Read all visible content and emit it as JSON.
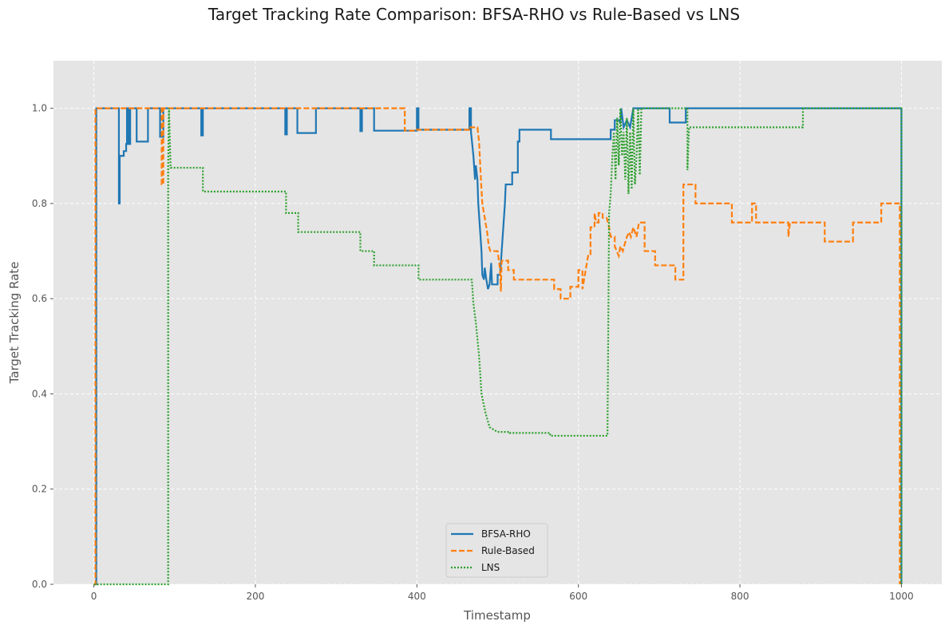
{
  "chart_data": {
    "type": "line",
    "title": "Target Tracking Rate Comparison: BFSA-RHO vs Rule-Based vs LNS",
    "xlabel": "Timestamp",
    "ylabel": "Target Tracking Rate",
    "xlim": [
      -50,
      1050
    ],
    "ylim": [
      0,
      1.1
    ],
    "xticks": [
      0,
      200,
      400,
      600,
      800,
      1000
    ],
    "yticks": [
      0.0,
      0.2,
      0.4,
      0.6,
      0.8,
      1.0
    ],
    "xtick_labels": [
      "0",
      "200",
      "400",
      "600",
      "800",
      "1000"
    ],
    "ytick_labels": [
      "0.0",
      "0.2",
      "0.4",
      "0.6",
      "0.8",
      "1.0"
    ],
    "grid": true,
    "legend_position": "lower-center",
    "series": [
      {
        "name": "BFSA-RHO",
        "color": "#1f77b4",
        "style": "solid",
        "points": [
          [
            0,
            0
          ],
          [
            3,
            0
          ],
          [
            3,
            1.0
          ],
          [
            31,
            1.0
          ],
          [
            31,
            0.8
          ],
          [
            32,
            0.8
          ],
          [
            32,
            0.9
          ],
          [
            37,
            0.9
          ],
          [
            37,
            0.91
          ],
          [
            40,
            0.91
          ],
          [
            40,
            0.925
          ],
          [
            41,
            0.925
          ],
          [
            41,
            1.0
          ],
          [
            43,
            1.0
          ],
          [
            43,
            0.925
          ],
          [
            45,
            0.925
          ],
          [
            45,
            1.0
          ],
          [
            53,
            1.0
          ],
          [
            53,
            0.93
          ],
          [
            67,
            0.93
          ],
          [
            67,
            1.0
          ],
          [
            82,
            1.0
          ],
          [
            82,
            0.94
          ],
          [
            86,
            0.94
          ],
          [
            86,
            1.0
          ],
          [
            133,
            1.0
          ],
          [
            133,
            0.943
          ],
          [
            135,
            0.943
          ],
          [
            135,
            1.0
          ],
          [
            237,
            1.0
          ],
          [
            237,
            0.945
          ],
          [
            239,
            0.945
          ],
          [
            239,
            1.0
          ],
          [
            252,
            1.0
          ],
          [
            252,
            0.948
          ],
          [
            275,
            0.948
          ],
          [
            275,
            1.0
          ],
          [
            330,
            1.0
          ],
          [
            330,
            0.952
          ],
          [
            332,
            0.952
          ],
          [
            332,
            1.0
          ],
          [
            347,
            1.0
          ],
          [
            347,
            0.953
          ],
          [
            400,
            0.953
          ],
          [
            400,
            1.0
          ],
          [
            402,
            1.0
          ],
          [
            402,
            0.955
          ],
          [
            465,
            0.955
          ],
          [
            465,
            1.0
          ],
          [
            467,
            1.0
          ],
          [
            467,
            0.95
          ],
          [
            470,
            0.9
          ],
          [
            472,
            0.85
          ],
          [
            473,
            0.88
          ],
          [
            475,
            0.85
          ],
          [
            476,
            0.8
          ],
          [
            478,
            0.75
          ],
          [
            480,
            0.7
          ],
          [
            481,
            0.65
          ],
          [
            483,
            0.64
          ],
          [
            484,
            0.665
          ],
          [
            486,
            0.64
          ],
          [
            488,
            0.62
          ],
          [
            490,
            0.63
          ],
          [
            492,
            0.675
          ],
          [
            493,
            0.63
          ],
          [
            500,
            0.63
          ],
          [
            500,
            0.65
          ],
          [
            503,
            0.65
          ],
          [
            505,
            0.7
          ],
          [
            507,
            0.75
          ],
          [
            509,
            0.8
          ],
          [
            510,
            0.84
          ],
          [
            518,
            0.84
          ],
          [
            518,
            0.865
          ],
          [
            525,
            0.865
          ],
          [
            525,
            0.93
          ],
          [
            527,
            0.93
          ],
          [
            527,
            0.955
          ],
          [
            566,
            0.955
          ],
          [
            566,
            0.935
          ],
          [
            640,
            0.935
          ],
          [
            640,
            0.955
          ],
          [
            645,
            0.955
          ],
          [
            645,
            0.975
          ],
          [
            650,
            0.975
          ],
          [
            652,
            0.97
          ],
          [
            653,
            1.0
          ],
          [
            656,
            0.96
          ],
          [
            660,
            0.975
          ],
          [
            664,
            0.96
          ],
          [
            666,
            0.98
          ],
          [
            668,
            1.0
          ],
          [
            713,
            1.0
          ],
          [
            713,
            0.97
          ],
          [
            733,
            0.97
          ],
          [
            733,
            1.0
          ],
          [
            1000,
            1.0
          ],
          [
            1000,
            0.0
          ]
        ]
      },
      {
        "name": "Rule-Based",
        "color": "#ff7f0e",
        "style": "dashed",
        "points": [
          [
            0,
            0
          ],
          [
            2,
            0
          ],
          [
            2,
            1.0
          ],
          [
            84,
            1.0
          ],
          [
            84,
            0.84
          ],
          [
            86,
            0.84
          ],
          [
            86,
            1.0
          ],
          [
            385,
            1.0
          ],
          [
            385,
            0.953
          ],
          [
            398,
            0.953
          ],
          [
            398,
            0.955
          ],
          [
            465,
            0.955
          ],
          [
            465,
            0.96
          ],
          [
            475,
            0.96
          ],
          [
            477,
            0.93
          ],
          [
            479,
            0.86
          ],
          [
            481,
            0.8
          ],
          [
            483,
            0.78
          ],
          [
            485,
            0.76
          ],
          [
            487,
            0.74
          ],
          [
            489,
            0.71
          ],
          [
            491,
            0.7
          ],
          [
            500,
            0.7
          ],
          [
            503,
            0.66
          ],
          [
            504,
            0.615
          ],
          [
            505,
            0.68
          ],
          [
            513,
            0.68
          ],
          [
            513,
            0.66
          ],
          [
            520,
            0.66
          ],
          [
            520,
            0.64
          ],
          [
            560,
            0.64
          ],
          [
            560,
            0.64
          ],
          [
            570,
            0.64
          ],
          [
            570,
            0.62
          ],
          [
            578,
            0.62
          ],
          [
            578,
            0.6
          ],
          [
            590,
            0.6
          ],
          [
            590,
            0.625
          ],
          [
            600,
            0.625
          ],
          [
            600,
            0.66
          ],
          [
            605,
            0.66
          ],
          [
            605,
            0.62
          ],
          [
            610,
            0.67
          ],
          [
            612,
            0.69
          ],
          [
            615,
            0.69
          ],
          [
            615,
            0.75
          ],
          [
            620,
            0.75
          ],
          [
            620,
            0.78
          ],
          [
            622,
            0.76
          ],
          [
            625,
            0.76
          ],
          [
            625,
            0.78
          ],
          [
            630,
            0.78
          ],
          [
            630,
            0.77
          ],
          [
            635,
            0.77
          ],
          [
            638,
            0.75
          ],
          [
            640,
            0.73
          ],
          [
            645,
            0.73
          ],
          [
            645,
            0.71
          ],
          [
            650,
            0.69
          ],
          [
            652,
            0.71
          ],
          [
            655,
            0.7
          ],
          [
            660,
            0.73
          ],
          [
            663,
            0.74
          ],
          [
            665,
            0.73
          ],
          [
            668,
            0.75
          ],
          [
            672,
            0.73
          ],
          [
            675,
            0.76
          ],
          [
            682,
            0.76
          ],
          [
            682,
            0.7
          ],
          [
            695,
            0.7
          ],
          [
            695,
            0.67
          ],
          [
            720,
            0.67
          ],
          [
            720,
            0.64
          ],
          [
            730,
            0.64
          ],
          [
            730,
            0.84
          ],
          [
            745,
            0.84
          ],
          [
            745,
            0.8
          ],
          [
            790,
            0.8
          ],
          [
            790,
            0.76
          ],
          [
            800,
            0.76
          ],
          [
            815,
            0.76
          ],
          [
            815,
            0.8
          ],
          [
            820,
            0.8
          ],
          [
            820,
            0.76
          ],
          [
            860,
            0.76
          ],
          [
            860,
            0.73
          ],
          [
            862,
            0.76
          ],
          [
            905,
            0.76
          ],
          [
            905,
            0.72
          ],
          [
            940,
            0.72
          ],
          [
            940,
            0.76
          ],
          [
            975,
            0.76
          ],
          [
            975,
            0.8
          ],
          [
            998,
            0.8
          ],
          [
            998,
            0.0
          ]
        ]
      },
      {
        "name": "LNS",
        "color": "#2ca02c",
        "style": "dotted",
        "points": [
          [
            0,
            0
          ],
          [
            92,
            0
          ],
          [
            92,
            0.875
          ],
          [
            93,
            1.0
          ],
          [
            95,
            0.875
          ],
          [
            135,
            0.875
          ],
          [
            135,
            0.825
          ],
          [
            238,
            0.825
          ],
          [
            238,
            0.78
          ],
          [
            253,
            0.78
          ],
          [
            253,
            0.74
          ],
          [
            330,
            0.74
          ],
          [
            330,
            0.7
          ],
          [
            347,
            0.7
          ],
          [
            347,
            0.67
          ],
          [
            402,
            0.67
          ],
          [
            402,
            0.64
          ],
          [
            468,
            0.64
          ],
          [
            470,
            0.59
          ],
          [
            473,
            0.55
          ],
          [
            477,
            0.48
          ],
          [
            480,
            0.4
          ],
          [
            485,
            0.36
          ],
          [
            490,
            0.33
          ],
          [
            500,
            0.32
          ],
          [
            515,
            0.32
          ],
          [
            515,
            0.318
          ],
          [
            565,
            0.318
          ],
          [
            565,
            0.312
          ],
          [
            636,
            0.312
          ],
          [
            638,
            0.78
          ],
          [
            640,
            0.82
          ],
          [
            642,
            0.9
          ],
          [
            644,
            0.95
          ],
          [
            646,
            0.85
          ],
          [
            648,
            0.98
          ],
          [
            650,
            0.88
          ],
          [
            652,
            1.0
          ],
          [
            654,
            0.9
          ],
          [
            656,
            0.95
          ],
          [
            658,
            0.85
          ],
          [
            660,
            0.98
          ],
          [
            662,
            0.82
          ],
          [
            664,
            0.95
          ],
          [
            666,
            0.83
          ],
          [
            668,
            1.0
          ],
          [
            670,
            0.84
          ],
          [
            672,
            0.9
          ],
          [
            674,
            1.0
          ],
          [
            676,
            0.86
          ],
          [
            678,
            1.0
          ],
          [
            735,
            1.0
          ],
          [
            735,
            0.87
          ],
          [
            737,
            0.96
          ],
          [
            878,
            0.96
          ],
          [
            878,
            1.0
          ],
          [
            1000,
            1.0
          ],
          [
            1000,
            0.0
          ]
        ]
      }
    ]
  }
}
